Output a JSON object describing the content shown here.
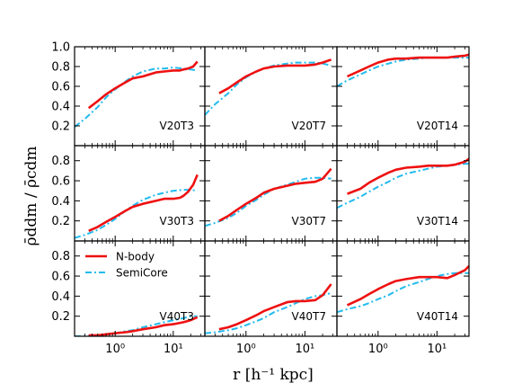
{
  "chart_data": {
    "type": "line",
    "layout": "3x3 grid of line plots sharing axes",
    "xscale": "log",
    "xlim": [
      0.2,
      35
    ],
    "ylim": [
      0.0,
      1.0
    ],
    "x_ticks": [
      {
        "value": 1,
        "label": "10⁰"
      },
      {
        "value": 10,
        "label": "10¹"
      }
    ],
    "y_ticks_top_row": [
      {
        "value": 0.2,
        "label": "0.2"
      },
      {
        "value": 0.4,
        "label": "0.4"
      },
      {
        "value": 0.6,
        "label": "0.6"
      },
      {
        "value": 0.8,
        "label": "0.8"
      },
      {
        "value": 1.0,
        "label": "1.0"
      }
    ],
    "y_ticks_other_rows": [
      {
        "value": 0.2,
        "label": "0.2"
      },
      {
        "value": 0.4,
        "label": "0.4"
      },
      {
        "value": 0.6,
        "label": "0.6"
      },
      {
        "value": 0.8,
        "label": "0.8"
      }
    ],
    "xlabel": "r [h⁻¹ kpc]",
    "ylabel": "ρ̄ddm / ρ̄cdm",
    "grid": false,
    "legend": {
      "placement": "top-left of bottom-left panel",
      "entries": [
        {
          "name": "N-body",
          "color": "#ee1111",
          "style": "solid"
        },
        {
          "name": "SemiCore",
          "color": "#22bbee",
          "style": "dashdot"
        }
      ]
    },
    "panels": [
      {
        "label": "V20T3",
        "nbody_x": [
          0.35,
          0.5,
          0.7,
          1.0,
          1.5,
          2.0,
          3.0,
          5.0,
          7.0,
          10.0,
          13.0,
          15.0,
          18.0,
          22.0,
          26.0
        ],
        "nbody_y": [
          0.38,
          0.45,
          0.52,
          0.58,
          0.64,
          0.68,
          0.7,
          0.74,
          0.75,
          0.76,
          0.76,
          0.77,
          0.78,
          0.8,
          0.85
        ],
        "semicore_x": [
          0.2,
          0.3,
          0.5,
          0.7,
          1.0,
          1.5,
          2.0,
          3.0,
          5.0,
          7.0,
          10.0,
          15.0,
          20.0,
          26.0
        ],
        "semicore_y": [
          0.19,
          0.27,
          0.39,
          0.49,
          0.57,
          0.65,
          0.7,
          0.75,
          0.78,
          0.78,
          0.79,
          0.78,
          0.77,
          0.76
        ]
      },
      {
        "label": "V20T7",
        "nbody_x": [
          0.35,
          0.5,
          0.7,
          1.0,
          1.5,
          2.0,
          3.0,
          5.0,
          7.0,
          10.0,
          15.0,
          20.0,
          28.0
        ],
        "nbody_y": [
          0.53,
          0.58,
          0.64,
          0.7,
          0.75,
          0.78,
          0.8,
          0.81,
          0.81,
          0.81,
          0.82,
          0.84,
          0.87
        ],
        "semicore_x": [
          0.2,
          0.3,
          0.5,
          0.7,
          1.0,
          1.5,
          2.0,
          3.0,
          5.0,
          7.0,
          10.0,
          15.0,
          20.0,
          28.0
        ],
        "semicore_y": [
          0.31,
          0.42,
          0.53,
          0.62,
          0.69,
          0.75,
          0.78,
          0.81,
          0.83,
          0.84,
          0.84,
          0.84,
          0.83,
          0.81
        ]
      },
      {
        "label": "V20T14",
        "nbody_x": [
          0.3,
          0.5,
          0.7,
          1.0,
          1.5,
          2.0,
          3.0,
          5.0,
          7.0,
          10.0,
          15.0,
          20.0,
          30.0,
          35.0
        ],
        "nbody_y": [
          0.7,
          0.76,
          0.8,
          0.84,
          0.87,
          0.88,
          0.88,
          0.89,
          0.89,
          0.89,
          0.89,
          0.9,
          0.91,
          0.92
        ],
        "semicore_x": [
          0.2,
          0.3,
          0.5,
          0.7,
          1.0,
          1.5,
          2.0,
          3.0,
          5.0,
          7.0,
          10.0,
          15.0,
          20.0,
          30.0,
          35.0
        ],
        "semicore_y": [
          0.6,
          0.66,
          0.72,
          0.76,
          0.8,
          0.83,
          0.85,
          0.87,
          0.88,
          0.89,
          0.89,
          0.89,
          0.89,
          0.89,
          0.89
        ]
      },
      {
        "label": "V30T3",
        "nbody_x": [
          0.35,
          0.5,
          0.7,
          1.0,
          1.5,
          2.0,
          3.0,
          5.0,
          7.0,
          10.0,
          13.0,
          15.0,
          18.0,
          22.0,
          26.0
        ],
        "nbody_y": [
          0.1,
          0.14,
          0.19,
          0.24,
          0.3,
          0.34,
          0.37,
          0.4,
          0.42,
          0.42,
          0.43,
          0.45,
          0.49,
          0.56,
          0.66
        ],
        "semicore_x": [
          0.2,
          0.3,
          0.5,
          0.7,
          1.0,
          1.5,
          2.0,
          3.0,
          5.0,
          7.0,
          10.0,
          15.0,
          20.0,
          26.0
        ],
        "semicore_y": [
          0.03,
          0.06,
          0.11,
          0.16,
          0.22,
          0.3,
          0.35,
          0.41,
          0.46,
          0.48,
          0.5,
          0.51,
          0.51,
          0.5
        ]
      },
      {
        "label": "V30T7",
        "nbody_x": [
          0.35,
          0.5,
          0.7,
          1.0,
          1.5,
          2.0,
          3.0,
          5.0,
          7.0,
          10.0,
          15.0,
          20.0,
          28.0
        ],
        "nbody_y": [
          0.2,
          0.25,
          0.31,
          0.37,
          0.43,
          0.48,
          0.52,
          0.55,
          0.57,
          0.58,
          0.59,
          0.62,
          0.72
        ],
        "semicore_x": [
          0.2,
          0.3,
          0.5,
          0.7,
          1.0,
          1.5,
          2.0,
          3.0,
          5.0,
          7.0,
          10.0,
          15.0,
          20.0,
          28.0
        ],
        "semicore_y": [
          0.15,
          0.18,
          0.23,
          0.28,
          0.35,
          0.41,
          0.46,
          0.52,
          0.56,
          0.59,
          0.62,
          0.63,
          0.63,
          0.62
        ]
      },
      {
        "label": "V30T14",
        "nbody_x": [
          0.3,
          0.5,
          0.7,
          1.0,
          1.5,
          2.0,
          3.0,
          5.0,
          7.0,
          10.0,
          15.0,
          20.0,
          30.0,
          35.0
        ],
        "nbody_y": [
          0.47,
          0.52,
          0.58,
          0.63,
          0.68,
          0.71,
          0.73,
          0.74,
          0.75,
          0.75,
          0.75,
          0.76,
          0.79,
          0.82
        ],
        "semicore_x": [
          0.2,
          0.3,
          0.5,
          0.7,
          1.0,
          1.5,
          2.0,
          3.0,
          5.0,
          7.0,
          10.0,
          15.0,
          20.0,
          30.0,
          35.0
        ],
        "semicore_y": [
          0.33,
          0.38,
          0.44,
          0.49,
          0.54,
          0.59,
          0.63,
          0.67,
          0.7,
          0.72,
          0.74,
          0.75,
          0.76,
          0.77,
          0.77
        ]
      },
      {
        "label": "V40T3",
        "nbody_x": [
          0.35,
          0.5,
          0.7,
          1.0,
          1.5,
          2.0,
          3.0,
          5.0,
          7.0,
          10.0,
          15.0,
          20.0,
          26.0
        ],
        "nbody_y": [
          0.01,
          0.01,
          0.02,
          0.03,
          0.04,
          0.05,
          0.07,
          0.09,
          0.11,
          0.12,
          0.14,
          0.16,
          0.19
        ],
        "semicore_x": [
          0.2,
          0.3,
          0.5,
          0.7,
          1.0,
          1.5,
          2.0,
          3.0,
          5.0,
          7.0,
          10.0,
          15.0,
          20.0,
          26.0
        ],
        "semicore_y": [
          0.0,
          0.0,
          0.01,
          0.02,
          0.03,
          0.05,
          0.06,
          0.09,
          0.12,
          0.14,
          0.16,
          0.18,
          0.2,
          0.2
        ]
      },
      {
        "label": "V40T7",
        "nbody_x": [
          0.35,
          0.5,
          0.7,
          1.0,
          1.5,
          2.0,
          3.0,
          5.0,
          7.0,
          10.0,
          15.0,
          20.0,
          28.0
        ],
        "nbody_y": [
          0.07,
          0.09,
          0.12,
          0.16,
          0.21,
          0.25,
          0.29,
          0.34,
          0.35,
          0.35,
          0.36,
          0.41,
          0.52
        ],
        "semicore_x": [
          0.2,
          0.3,
          0.5,
          0.7,
          1.0,
          1.5,
          2.0,
          3.0,
          5.0,
          7.0,
          10.0,
          15.0,
          20.0,
          28.0
        ],
        "semicore_y": [
          0.03,
          0.04,
          0.06,
          0.08,
          0.11,
          0.15,
          0.18,
          0.24,
          0.29,
          0.33,
          0.37,
          0.4,
          0.41,
          0.43
        ]
      },
      {
        "label": "V40T14",
        "nbody_x": [
          0.3,
          0.5,
          0.7,
          1.0,
          1.5,
          2.0,
          3.0,
          5.0,
          7.0,
          10.0,
          15.0,
          20.0,
          30.0,
          35.0
        ],
        "nbody_y": [
          0.31,
          0.37,
          0.42,
          0.47,
          0.52,
          0.55,
          0.57,
          0.59,
          0.59,
          0.59,
          0.58,
          0.61,
          0.66,
          0.7
        ],
        "semicore_x": [
          0.2,
          0.3,
          0.5,
          0.7,
          1.0,
          1.5,
          2.0,
          3.0,
          5.0,
          7.0,
          10.0,
          15.0,
          20.0,
          30.0,
          35.0
        ],
        "semicore_y": [
          0.24,
          0.27,
          0.3,
          0.33,
          0.37,
          0.41,
          0.45,
          0.5,
          0.54,
          0.57,
          0.6,
          0.62,
          0.63,
          0.63,
          0.63
        ]
      }
    ]
  }
}
